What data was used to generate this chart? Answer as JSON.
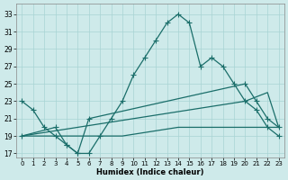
{
  "xlabel": "Humidex (Indice chaleur)",
  "bg_color": "#ceeaea",
  "grid_color": "#a8d4d4",
  "line_color": "#1a6e6a",
  "xlim": [
    -0.5,
    23.5
  ],
  "ylim": [
    16.5,
    34.2
  ],
  "xticks": [
    0,
    1,
    2,
    3,
    4,
    5,
    6,
    7,
    8,
    9,
    10,
    11,
    12,
    13,
    14,
    15,
    16,
    17,
    18,
    19,
    20,
    21,
    22,
    23
  ],
  "yticks": [
    17,
    19,
    21,
    23,
    25,
    27,
    29,
    31,
    33
  ],
  "line1_x": [
    0,
    1,
    2,
    3,
    4,
    5,
    6,
    7,
    8,
    9,
    10,
    11,
    12,
    13,
    14,
    15,
    16,
    17,
    18,
    19,
    20,
    21,
    22,
    23
  ],
  "line1_y": [
    23,
    22,
    20,
    19,
    18,
    17,
    17,
    19,
    21,
    23,
    26,
    28,
    30,
    32,
    33,
    32,
    27,
    28,
    27,
    25,
    23,
    22,
    20,
    19
  ],
  "line2_x": [
    0,
    3,
    4,
    5,
    6,
    20,
    21,
    22,
    23
  ],
  "line2_y": [
    19,
    20,
    18,
    17,
    21,
    25,
    23,
    21,
    20
  ],
  "line3_x": [
    0,
    1,
    2,
    3,
    4,
    5,
    6,
    7,
    8,
    9,
    10,
    11,
    12,
    13,
    14,
    15,
    16,
    17,
    18,
    19,
    20,
    21,
    22,
    23
  ],
  "line3_y": [
    19,
    19.2,
    19.4,
    19.6,
    19.8,
    20,
    20.2,
    20.4,
    20.6,
    20.8,
    21,
    21.2,
    21.4,
    21.6,
    21.8,
    22,
    22.2,
    22.4,
    22.6,
    22.8,
    23,
    23.5,
    24,
    20
  ],
  "line4_x": [
    0,
    1,
    2,
    3,
    4,
    5,
    6,
    7,
    8,
    9,
    10,
    11,
    12,
    13,
    14,
    15,
    16,
    17,
    18,
    19,
    20,
    21,
    22,
    23
  ],
  "line4_y": [
    19,
    19,
    19,
    19,
    19,
    19,
    19,
    19,
    19,
    19,
    19.2,
    19.4,
    19.6,
    19.8,
    20,
    20,
    20,
    20,
    20,
    20,
    20,
    20,
    20,
    20
  ]
}
